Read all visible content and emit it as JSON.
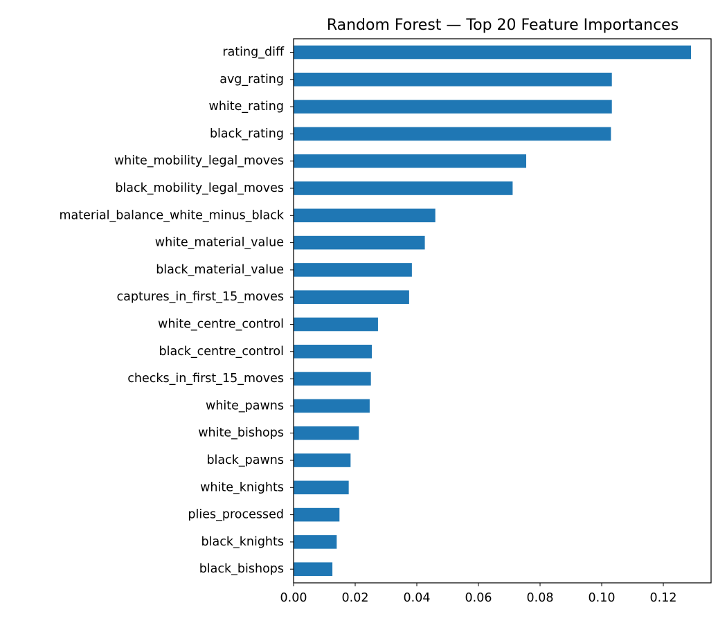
{
  "chart_data": {
    "type": "bar",
    "orientation": "horizontal",
    "title": "Random Forest — Top 20 Feature Importances",
    "xlabel": "",
    "ylabel": "",
    "xlim": [
      0,
      0.1355
    ],
    "x_ticks": [
      0.0,
      0.02,
      0.04,
      0.06,
      0.08,
      0.1,
      0.12
    ],
    "x_tick_labels": [
      "0.00",
      "0.02",
      "0.04",
      "0.06",
      "0.08",
      "0.10",
      "0.12"
    ],
    "grid": false,
    "bar_color": "#1f77b4",
    "categories": [
      "rating_diff",
      "avg_rating",
      "white_rating",
      "black_rating",
      "white_mobility_legal_moves",
      "black_mobility_legal_moves",
      "material_balance_white_minus_black",
      "white_material_value",
      "black_material_value",
      "captures_in_first_15_moves",
      "white_centre_control",
      "black_centre_control",
      "checks_in_first_15_moves",
      "white_pawns",
      "white_bishops",
      "black_pawns",
      "white_knights",
      "plies_processed",
      "black_knights",
      "black_bishops"
    ],
    "values": [
      0.129,
      0.1033,
      0.1033,
      0.103,
      0.0755,
      0.0711,
      0.046,
      0.0426,
      0.0384,
      0.0375,
      0.0274,
      0.0254,
      0.0251,
      0.0247,
      0.0212,
      0.0185,
      0.0179,
      0.0149,
      0.014,
      0.0126
    ]
  }
}
